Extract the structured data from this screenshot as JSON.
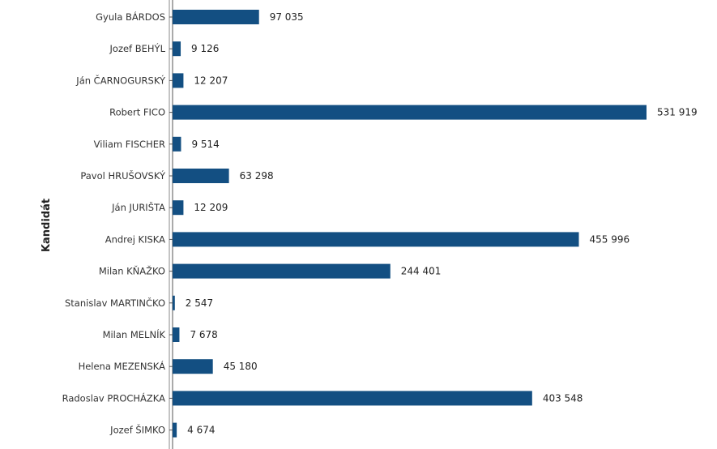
{
  "chart_data": {
    "type": "bar",
    "orientation": "horizontal",
    "ylabel": "Kandidát",
    "xlabel": "",
    "categories": [
      "Gyula BÁRDOS",
      "Jozef BEHÝL",
      "Ján ČARNOGURSKÝ",
      "Robert FICO",
      "Viliam FISCHER",
      "Pavol HRUŠOVSKÝ",
      "Ján JURIŠTA",
      "Andrej KISKA",
      "Milan KŇAŽKO",
      "Stanislav MARTINČKO",
      "Milan MELNÍK",
      "Helena MEZENSKÁ",
      "Radoslav PROCHÁZKA",
      "Jozef ŠIMKO"
    ],
    "values": [
      97035,
      9126,
      12207,
      531919,
      9514,
      63298,
      12209,
      455996,
      244401,
      2547,
      7678,
      45180,
      403548,
      4674
    ],
    "value_labels": [
      "97 035",
      "9 126",
      "12 207",
      "531 919",
      "9 514",
      "63 298",
      "12 209",
      "455 996",
      "244 401",
      "2 547",
      "7 678",
      "45 180",
      "403 548",
      "4 674"
    ],
    "xlim": [
      0,
      531919
    ],
    "grid": false,
    "legend": "none",
    "bar_color": "#134f82"
  }
}
